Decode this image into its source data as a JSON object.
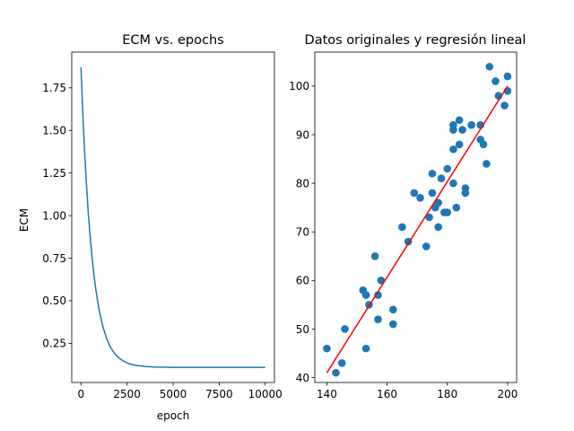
{
  "figure": {
    "background": "#ffffff"
  },
  "chart_data": [
    {
      "type": "line",
      "title": "ECM vs. epochs",
      "xlabel": "epoch",
      "ylabel": "ECM",
      "xlim": [
        -500,
        10500
      ],
      "ylim": [
        0.02,
        1.96
      ],
      "xticks": [
        0,
        2500,
        5000,
        7500,
        10000
      ],
      "xtick_labels": [
        "0",
        "2500",
        "5000",
        "7500",
        "10000"
      ],
      "yticks": [
        0.25,
        0.5,
        0.75,
        1.0,
        1.25,
        1.5,
        1.75
      ],
      "ytick_labels": [
        "0.25",
        "0.50",
        "0.75",
        "1.00",
        "1.25",
        "1.50",
        "1.75"
      ],
      "grid": false,
      "series": [
        {
          "color": "#1f77b4",
          "x": [
            0,
            100,
            200,
            300,
            400,
            500,
            600,
            700,
            800,
            900,
            1000,
            1200,
            1400,
            1600,
            1800,
            2000,
            2250,
            2500,
            2750,
            3000,
            3500,
            4000,
            4500,
            5000,
            6000,
            7000,
            8000,
            9000,
            10000
          ],
          "y": [
            1.87,
            1.6,
            1.37,
            1.18,
            1.01,
            0.875,
            0.757,
            0.656,
            0.571,
            0.499,
            0.438,
            0.343,
            0.276,
            0.228,
            0.194,
            0.17,
            0.149,
            0.135,
            0.126,
            0.12,
            0.114,
            0.111,
            0.11,
            0.109,
            0.109,
            0.109,
            0.109,
            0.109,
            0.109
          ]
        }
      ]
    },
    {
      "type": "scatter",
      "title": "Datos originales y regresión lineal",
      "xlabel": "",
      "ylabel": "",
      "xlim": [
        136,
        203
      ],
      "ylim": [
        39,
        107
      ],
      "xticks": [
        140,
        160,
        180,
        200
      ],
      "xtick_labels": [
        "140",
        "160",
        "180",
        "200"
      ],
      "yticks": [
        40,
        50,
        60,
        70,
        80,
        90,
        100
      ],
      "ytick_labels": [
        "40",
        "50",
        "60",
        "70",
        "80",
        "90",
        "100"
      ],
      "grid": false,
      "series": [
        {
          "color": "#1f77b4",
          "points": [
            [
              140,
              46
            ],
            [
              143,
              41
            ],
            [
              145,
              43
            ],
            [
              146,
              50
            ],
            [
              152,
              58
            ],
            [
              153,
              57
            ],
            [
              153,
              46
            ],
            [
              154,
              55
            ],
            [
              156,
              65
            ],
            [
              157,
              57
            ],
            [
              157,
              52
            ],
            [
              158,
              60
            ],
            [
              162,
              51
            ],
            [
              162,
              54
            ],
            [
              165,
              71
            ],
            [
              167,
              68
            ],
            [
              169,
              78
            ],
            [
              171,
              77
            ],
            [
              173,
              67
            ],
            [
              174,
              73
            ],
            [
              175,
              82
            ],
            [
              175,
              78
            ],
            [
              176,
              75
            ],
            [
              177,
              76
            ],
            [
              177,
              71
            ],
            [
              178,
              81
            ],
            [
              179,
              74
            ],
            [
              180,
              83
            ],
            [
              180,
              74
            ],
            [
              182,
              87
            ],
            [
              182,
              91
            ],
            [
              182,
              92
            ],
            [
              182,
              80
            ],
            [
              183,
              75
            ],
            [
              184,
              88
            ],
            [
              184,
              93
            ],
            [
              185,
              91
            ],
            [
              186,
              79
            ],
            [
              186,
              78
            ],
            [
              188,
              92
            ],
            [
              191,
              92
            ],
            [
              191,
              89
            ],
            [
              192,
              88
            ],
            [
              193,
              84
            ],
            [
              194,
              104
            ],
            [
              196,
              101
            ],
            [
              197,
              98
            ],
            [
              199,
              96
            ],
            [
              200,
              102
            ],
            [
              200,
              99
            ]
          ]
        },
        {
          "type": "line",
          "color": "#ff0000",
          "x": [
            140,
            200
          ],
          "y": [
            41,
            100
          ]
        }
      ]
    }
  ]
}
